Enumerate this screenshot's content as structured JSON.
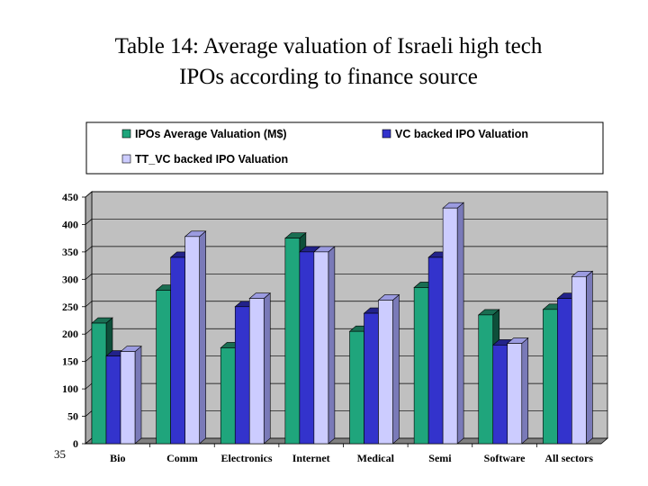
{
  "slide": {
    "title_line1": "Table 14: Average valuation of Israeli high tech",
    "title_line2": "IPOs according to finance source",
    "number": "35"
  },
  "chart_data": {
    "type": "bar",
    "title": "Table 14: Average valuation of Israeli high tech IPOs according to finance source",
    "categories": [
      "Bio",
      "Comm",
      "Electronics",
      "Internet",
      "Medical",
      "Semi",
      "Software",
      "All sectors"
    ],
    "series": [
      {
        "name": "IPOs Average Valuation (M$)",
        "color": "#1fa57c",
        "top_color": "#1a6e52",
        "side_color": "#0e4f3a",
        "values": [
          220,
          280,
          175,
          375,
          205,
          285,
          235,
          245
        ]
      },
      {
        "name": "VC backed IPO Valuation",
        "color": "#3333cc",
        "top_color": "#22228a",
        "side_color": "#16166a",
        "values": [
          160,
          340,
          250,
          350,
          238,
          340,
          180,
          265
        ]
      },
      {
        "name": "TT_VC backed IPO Valuation",
        "color": "#ccccff",
        "top_color": "#9b9be0",
        "side_color": "#7a7ab8",
        "values": [
          168,
          378,
          265,
          350,
          262,
          430,
          183,
          305
        ]
      }
    ],
    "ylim": [
      0,
      450
    ],
    "yticks": [
      0,
      50,
      100,
      150,
      200,
      250,
      300,
      350,
      400,
      450
    ],
    "wall_color": "#c0c0c0",
    "grid": true,
    "legend_position": "top",
    "three_d": true
  }
}
